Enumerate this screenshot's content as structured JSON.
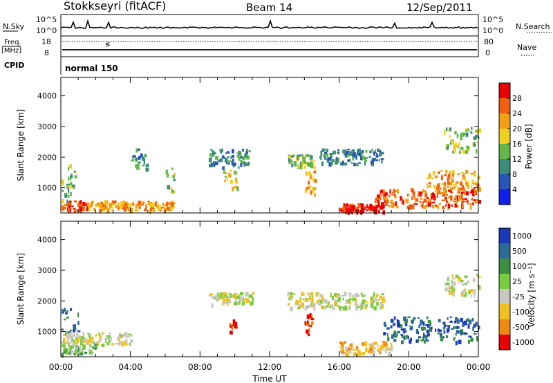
{
  "header": {
    "station": "Stokkseyri (fitACF)",
    "beam": "Beam 14",
    "date": "12/Sep/2011"
  },
  "noise_panel": {
    "left_label": "N.Sky",
    "left_ticks": [
      "10^5",
      "10^0"
    ],
    "right_ticks": [
      "10^5",
      "10^0"
    ],
    "right_label": "N.Search"
  },
  "freq_panel": {
    "label_line1": "Freq.",
    "label_line2": "[MHz]",
    "left_ticks": [
      "18",
      "8"
    ],
    "right_ticks": [
      "80",
      "0"
    ],
    "right_label": "Nave"
  },
  "cpid_panel": {
    "label": "CPID",
    "value": "normal 150"
  },
  "x_axis": {
    "ticks": [
      "00:00",
      "04:00",
      "08:00",
      "12:00",
      "16:00",
      "20:00",
      "00:00"
    ],
    "title": "Time UT"
  },
  "chart_data": [
    {
      "type": "heatmap",
      "quantity": "Power",
      "ylabel": "Slant Range [km]",
      "ylim": [
        180,
        4600
      ],
      "y_ticks": [
        "1000",
        "2000",
        "3000",
        "4000"
      ],
      "colorbar_label": "Power [dB]",
      "colorbar_ticks": [
        "4",
        "8",
        "12",
        "16",
        "20",
        "24",
        "28"
      ],
      "colorbar_colors": [
        "#1020e8",
        "#2a55b8",
        "#3c8c7a",
        "#66b84a",
        "#f0d020",
        "#f0a010",
        "#f06010",
        "#e80000"
      ],
      "regions": [
        {
          "t": [
            0.0,
            1.5
          ],
          "r": [
            300,
            600
          ],
          "level": 6
        },
        {
          "t": [
            0.0,
            0.8
          ],
          "r": [
            600,
            1800
          ],
          "level": 3
        },
        {
          "t": [
            1.5,
            6.5
          ],
          "r": [
            300,
            600
          ],
          "level": 5
        },
        {
          "t": [
            4.0,
            5.0
          ],
          "r": [
            1600,
            2300
          ],
          "level": 2
        },
        {
          "t": [
            6.0,
            6.5
          ],
          "r": [
            900,
            1700
          ],
          "level": 3
        },
        {
          "t": [
            8.5,
            10.8
          ],
          "r": [
            1700,
            2300
          ],
          "level": 2
        },
        {
          "t": [
            9.3,
            10.1
          ],
          "r": [
            1000,
            1600
          ],
          "level": 4
        },
        {
          "t": [
            13.0,
            14.5
          ],
          "r": [
            1700,
            2100
          ],
          "level": 3
        },
        {
          "t": [
            14.0,
            14.6
          ],
          "r": [
            700,
            1600
          ],
          "level": 5
        },
        {
          "t": [
            14.8,
            18.5
          ],
          "r": [
            1800,
            2300
          ],
          "level": 2
        },
        {
          "t": [
            16.0,
            18.5
          ],
          "r": [
            250,
            500
          ],
          "level": 7
        },
        {
          "t": [
            18.0,
            24.0
          ],
          "r": [
            400,
            1000
          ],
          "level": 6
        },
        {
          "t": [
            21.0,
            24.0
          ],
          "r": [
            1000,
            1600
          ],
          "level": 5
        },
        {
          "t": [
            22.0,
            24.0
          ],
          "r": [
            2200,
            3000
          ],
          "level": 3
        }
      ]
    },
    {
      "type": "heatmap",
      "quantity": "Velocity",
      "ylabel": "Slant Range [km]",
      "ylim": [
        180,
        4600
      ],
      "y_ticks": [
        "1000",
        "2000",
        "3000",
        "4000"
      ],
      "colorbar_label": "Velocity [m s⁻¹]",
      "colorbar_ticks": [
        "1000",
        "500",
        "100",
        "25",
        "-25",
        "-100",
        "-500",
        "-1000"
      ],
      "colorbar_colors": [
        "#1a3ab8",
        "#2c6a98",
        "#3a9040",
        "#7acc40",
        "#c8c8c0",
        "#f0c020",
        "#f08a10",
        "#e80000"
      ],
      "regions": [
        {
          "t": [
            0.0,
            1.0
          ],
          "r": [
            1000,
            1800
          ],
          "level": 1
        },
        {
          "t": [
            0.0,
            4.0
          ],
          "r": [
            600,
            1000
          ],
          "level": 4
        },
        {
          "t": [
            0.0,
            2.0
          ],
          "r": [
            300,
            600
          ],
          "level": 3
        },
        {
          "t": [
            8.5,
            11.0
          ],
          "r": [
            1900,
            2300
          ],
          "level": 4
        },
        {
          "t": [
            9.5,
            10.0
          ],
          "r": [
            1000,
            1500
          ],
          "level": 7
        },
        {
          "t": [
            13.0,
            18.5
          ],
          "r": [
            1800,
            2300
          ],
          "level": 4
        },
        {
          "t": [
            14.0,
            14.5
          ],
          "r": [
            800,
            1600
          ],
          "level": 7
        },
        {
          "t": [
            16.0,
            19.0
          ],
          "r": [
            300,
            700
          ],
          "level": 5
        },
        {
          "t": [
            18.5,
            24.0
          ],
          "r": [
            700,
            1500
          ],
          "level": 1
        },
        {
          "t": [
            22.0,
            24.0
          ],
          "r": [
            2200,
            2900
          ],
          "level": 4
        }
      ]
    }
  ]
}
